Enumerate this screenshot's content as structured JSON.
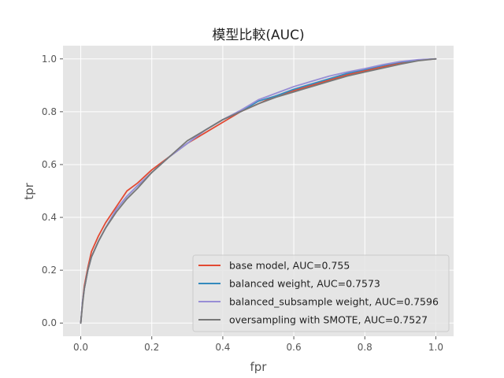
{
  "chart_data": {
    "type": "line",
    "title": "模型比較(AUC)",
    "xlabel": "fpr",
    "ylabel": "tpr",
    "xlim": [
      -0.05,
      1.05
    ],
    "ylim": [
      -0.05,
      1.05
    ],
    "xticks": [
      0.0,
      0.2,
      0.4,
      0.6,
      0.8,
      1.0
    ],
    "yticks": [
      0.0,
      0.2,
      0.4,
      0.6,
      0.8,
      1.0
    ],
    "tick_labels_x": [
      "0.0",
      "0.2",
      "0.4",
      "0.6",
      "0.8",
      "1.0"
    ],
    "tick_labels_y": [
      "0.0",
      "0.2",
      "0.4",
      "0.6",
      "0.8",
      "1.0"
    ],
    "grid": true,
    "legend_position": "bottom-right",
    "series": [
      {
        "name": "base model, AUC=0.755",
        "color": "#E24A33",
        "x": [
          0,
          0.005,
          0.01,
          0.02,
          0.03,
          0.05,
          0.07,
          0.1,
          0.13,
          0.16,
          0.2,
          0.25,
          0.3,
          0.35,
          0.4,
          0.45,
          0.5,
          0.55,
          0.6,
          0.65,
          0.7,
          0.75,
          0.8,
          0.85,
          0.9,
          0.95,
          1.0
        ],
        "y": [
          0,
          0.08,
          0.14,
          0.21,
          0.27,
          0.33,
          0.38,
          0.44,
          0.5,
          0.53,
          0.58,
          0.63,
          0.68,
          0.72,
          0.76,
          0.8,
          0.83,
          0.86,
          0.88,
          0.9,
          0.92,
          0.94,
          0.955,
          0.97,
          0.985,
          0.995,
          1.0
        ]
      },
      {
        "name": "balanced weight, AUC=0.7573",
        "color": "#348ABD",
        "x": [
          0,
          0.005,
          0.01,
          0.02,
          0.03,
          0.05,
          0.07,
          0.1,
          0.13,
          0.16,
          0.2,
          0.25,
          0.3,
          0.35,
          0.4,
          0.45,
          0.5,
          0.55,
          0.6,
          0.65,
          0.7,
          0.75,
          0.8,
          0.85,
          0.9,
          0.95,
          1.0
        ],
        "y": [
          0,
          0.08,
          0.13,
          0.2,
          0.25,
          0.31,
          0.36,
          0.43,
          0.48,
          0.52,
          0.57,
          0.63,
          0.68,
          0.73,
          0.77,
          0.8,
          0.84,
          0.86,
          0.885,
          0.905,
          0.925,
          0.945,
          0.96,
          0.975,
          0.988,
          0.996,
          1.0
        ]
      },
      {
        "name": "balanced_subsample weight, AUC=0.7596",
        "color": "#988ED5",
        "x": [
          0,
          0.005,
          0.01,
          0.02,
          0.03,
          0.05,
          0.07,
          0.1,
          0.13,
          0.16,
          0.2,
          0.25,
          0.3,
          0.35,
          0.4,
          0.45,
          0.5,
          0.55,
          0.6,
          0.65,
          0.7,
          0.75,
          0.8,
          0.85,
          0.9,
          0.95,
          1.0
        ],
        "y": [
          0,
          0.08,
          0.13,
          0.2,
          0.25,
          0.31,
          0.36,
          0.43,
          0.48,
          0.52,
          0.57,
          0.63,
          0.68,
          0.73,
          0.77,
          0.805,
          0.845,
          0.87,
          0.895,
          0.915,
          0.935,
          0.95,
          0.963,
          0.978,
          0.99,
          0.997,
          1.0
        ]
      },
      {
        "name": "oversampling with SMOTE, AUC=0.7527",
        "color": "#777777",
        "x": [
          0,
          0.005,
          0.01,
          0.02,
          0.03,
          0.05,
          0.07,
          0.1,
          0.13,
          0.16,
          0.2,
          0.25,
          0.3,
          0.35,
          0.4,
          0.45,
          0.5,
          0.55,
          0.6,
          0.65,
          0.7,
          0.75,
          0.8,
          0.85,
          0.9,
          0.95,
          1.0
        ],
        "y": [
          0,
          0.07,
          0.13,
          0.2,
          0.25,
          0.31,
          0.36,
          0.42,
          0.47,
          0.51,
          0.57,
          0.63,
          0.69,
          0.73,
          0.77,
          0.8,
          0.83,
          0.855,
          0.875,
          0.895,
          0.915,
          0.935,
          0.95,
          0.965,
          0.98,
          0.993,
          1.0
        ]
      }
    ]
  }
}
